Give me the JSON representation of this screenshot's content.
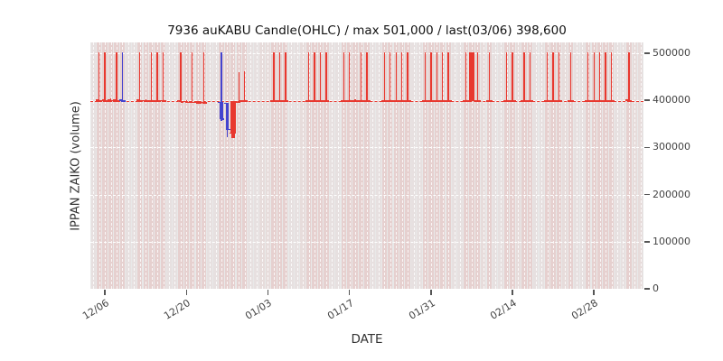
{
  "chart_data": {
    "type": "candlestick",
    "title": "7936 auKABU Candle(OHLC) / max 501,000 / last(03/06) 398,600",
    "xlabel": "DATE",
    "ylabel": "IPPAN ZAIKO (volume)",
    "ylim": [
      0,
      523000
    ],
    "yticks": [
      0,
      100000,
      200000,
      300000,
      400000,
      500000
    ],
    "ytick_labels": [
      "0",
      "100000",
      "200000",
      "300000",
      "400000",
      "500000"
    ],
    "xticks": [
      "12/06",
      "12/20",
      "01/03",
      "01/17",
      "01/31",
      "02/14",
      "02/28"
    ],
    "date_range": [
      "12/04",
      "03/08"
    ],
    "max_value": 501000,
    "last": {
      "date": "03/06",
      "value": 398600
    },
    "last_line": {
      "value": 398600,
      "style": "dashed"
    },
    "grid": true,
    "legend": false,
    "colors": {
      "up": "#e8382f",
      "down": "#4343cf",
      "last_line": "#e8382f",
      "plot_bg": "#e8e8e8",
      "grid": "#ffffff",
      "band_active": "rgba(225,85,80,0.16)",
      "band_idle": "rgba(225,85,80,0.08)",
      "band_weekend": "rgba(225,85,80,0.05)"
    },
    "candles": [
      [
        "12/05",
        400000,
        501000,
        398600,
        398600,
        "r",
        0
      ],
      [
        "12/06",
        400000,
        501000,
        398600,
        398600,
        "r",
        0
      ],
      [
        "12/07",
        400000,
        404000,
        398600,
        399000,
        "r",
        0
      ],
      [
        "12/08",
        400000,
        501000,
        398600,
        398600,
        "r",
        0
      ],
      [
        "12/09",
        400000,
        501000,
        397000,
        398000,
        "b",
        0
      ],
      [
        "12/12",
        400000,
        501000,
        398000,
        399000,
        "r",
        0
      ],
      [
        "12/13",
        399000,
        403000,
        397500,
        398000,
        "r",
        0
      ],
      [
        "12/14",
        399000,
        501000,
        397500,
        398500,
        "r",
        0
      ],
      [
        "12/15",
        399000,
        501000,
        397500,
        398500,
        "r",
        0
      ],
      [
        "12/16",
        399000,
        501000,
        397500,
        398500,
        "r",
        0
      ],
      [
        "12/19",
        399000,
        501000,
        396500,
        397000,
        "r",
        0
      ],
      [
        "12/20",
        397500,
        401000,
        395500,
        396000,
        "r",
        0
      ],
      [
        "12/21",
        397000,
        501000,
        395000,
        396000,
        "r",
        0
      ],
      [
        "12/22",
        396500,
        399000,
        394000,
        395000,
        "r",
        0
      ],
      [
        "12/23",
        396000,
        501000,
        393000,
        394500,
        "r",
        0
      ],
      [
        "12/26",
        396000,
        501000,
        356000,
        360000,
        "b",
        0
      ],
      [
        "12/27",
        394000,
        395000,
        322000,
        338000,
        "b",
        0
      ],
      [
        "12/28",
        330000,
        399000,
        320000,
        396000,
        "r",
        1
      ],
      [
        "12/29",
        396000,
        460000,
        395000,
        398000,
        "r",
        0
      ],
      [
        "12/30",
        398000,
        462000,
        396000,
        398600,
        "r",
        0
      ],
      [
        "01/04",
        398600,
        501000,
        398000,
        398600,
        "r",
        0
      ],
      [
        "01/05",
        398600,
        501000,
        398000,
        398600,
        "r",
        0
      ],
      [
        "01/06",
        398600,
        501000,
        398000,
        398600,
        "r",
        0
      ],
      [
        "01/10",
        398600,
        501000,
        398600,
        398600,
        "r",
        0
      ],
      [
        "01/11",
        398600,
        501000,
        398600,
        398600,
        "r",
        0
      ],
      [
        "01/12",
        398600,
        501000,
        398600,
        398600,
        "r",
        0
      ],
      [
        "01/13",
        398600,
        501000,
        398600,
        398600,
        "r",
        0
      ],
      [
        "01/16",
        398600,
        501000,
        398600,
        398600,
        "r",
        0
      ],
      [
        "01/17",
        398600,
        501000,
        398600,
        398600,
        "r",
        0
      ],
      [
        "01/18",
        398600,
        402000,
        398000,
        398600,
        "r",
        0
      ],
      [
        "01/19",
        398600,
        501000,
        398600,
        398600,
        "r",
        0
      ],
      [
        "01/20",
        398600,
        501000,
        398600,
        398600,
        "r",
        0
      ],
      [
        "01/23",
        398600,
        501000,
        398600,
        398600,
        "r",
        0
      ],
      [
        "01/24",
        398600,
        501000,
        398600,
        398600,
        "r",
        0
      ],
      [
        "01/25",
        398600,
        501000,
        398600,
        398600,
        "r",
        0
      ],
      [
        "01/26",
        398600,
        501000,
        398600,
        398600,
        "r",
        0
      ],
      [
        "01/27",
        398600,
        501000,
        398600,
        398600,
        "r",
        0
      ],
      [
        "01/30",
        398600,
        501000,
        398600,
        398600,
        "r",
        0
      ],
      [
        "01/31",
        398600,
        501000,
        398600,
        398600,
        "r",
        0
      ],
      [
        "02/01",
        398600,
        501000,
        398600,
        398600,
        "r",
        0
      ],
      [
        "02/02",
        398600,
        501000,
        398600,
        398600,
        "r",
        0
      ],
      [
        "02/03",
        398600,
        501000,
        398600,
        398600,
        "r",
        0
      ],
      [
        "02/06",
        398600,
        501000,
        398600,
        398600,
        "r",
        0
      ],
      [
        "02/07",
        398600,
        501000,
        398600,
        501000,
        "r",
        1
      ],
      [
        "02/08",
        398600,
        501000,
        398600,
        398600,
        "r",
        0
      ],
      [
        "02/10",
        398600,
        501000,
        398600,
        398600,
        "r",
        0
      ],
      [
        "02/13",
        398600,
        501000,
        398600,
        398600,
        "r",
        0
      ],
      [
        "02/14",
        398600,
        501000,
        398600,
        398600,
        "r",
        0
      ],
      [
        "02/16",
        398600,
        501000,
        398600,
        398600,
        "r",
        0
      ],
      [
        "02/17",
        398600,
        501000,
        398600,
        398600,
        "r",
        0
      ],
      [
        "02/20",
        398600,
        501000,
        398600,
        398600,
        "r",
        0
      ],
      [
        "02/21",
        398600,
        501000,
        398600,
        398600,
        "r",
        0
      ],
      [
        "02/22",
        398600,
        501000,
        398600,
        398600,
        "r",
        0
      ],
      [
        "02/24",
        398600,
        501000,
        398600,
        398600,
        "r",
        0
      ],
      [
        "02/27",
        398600,
        501000,
        398600,
        398600,
        "r",
        0
      ],
      [
        "02/28",
        398600,
        501000,
        398600,
        398600,
        "r",
        0
      ],
      [
        "03/01",
        398600,
        501000,
        398600,
        398600,
        "r",
        0
      ],
      [
        "03/02",
        398600,
        501000,
        398600,
        398600,
        "r",
        0
      ],
      [
        "03/03",
        398600,
        501000,
        398600,
        398600,
        "r",
        0
      ],
      [
        "03/06",
        400000,
        501000,
        398600,
        398600,
        "r",
        0
      ]
    ]
  }
}
